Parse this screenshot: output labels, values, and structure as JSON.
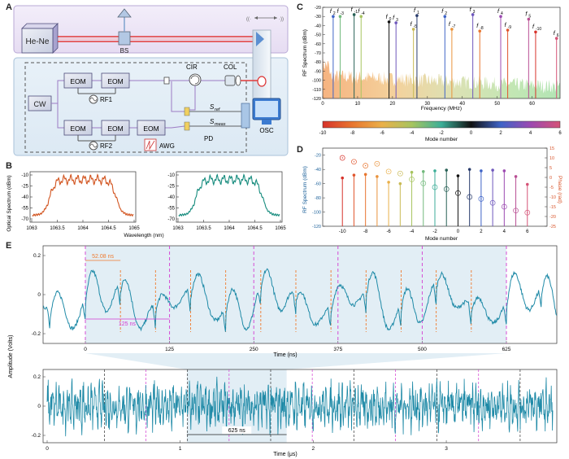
{
  "panel_labels": [
    "A",
    "B",
    "C",
    "D",
    "E"
  ],
  "panel_a": {
    "laser": "He-Ne",
    "beam_splitter": "BS",
    "cw": "CW",
    "eom": "EOM",
    "rf1": "RF1",
    "rf2": "RF2",
    "awg": "AWG",
    "cir": "CIR",
    "col": "COL",
    "pd": "PD",
    "osc": "OSC",
    "s_ref": "S",
    "s_ref_sub": "ref",
    "s_meas": "S",
    "s_meas_sub": "meas"
  },
  "panel_b": {
    "ylabel": "Optical Spectrum (dBm)",
    "xlabel": "Wavelength (nm)",
    "yticks": [
      "-10",
      "-25",
      "-40",
      "-55",
      "-70"
    ],
    "xticks": [
      "1063",
      "1063.5",
      "1064",
      "1064.5",
      "1065"
    ],
    "colors": [
      "#d2541f",
      "#178c7e"
    ]
  },
  "panel_c": {
    "ylabel": "RF Spectrum (dBm)",
    "xlabel": "Frequency (MHz)",
    "colorbar_label": "Mode number",
    "yticks": [
      "-20",
      "-30",
      "-40",
      "-50",
      "-60",
      "-70",
      "-80",
      "-90",
      "-100",
      "-110",
      "-120"
    ],
    "xticks": [
      "0",
      "10",
      "20",
      "30",
      "40",
      "50",
      "60"
    ],
    "colorbar_ticks": [
      "-10",
      "-8",
      "-6",
      "-4",
      "-2",
      "0",
      "2",
      "4",
      "6"
    ],
    "peak_labels": [
      {
        "base": "f",
        "sub": "2"
      },
      {
        "base": "f",
        "sub": "-3"
      },
      {
        "base": "f",
        "sub": "-1"
      },
      {
        "base": "f",
        "sub": "-4"
      },
      {
        "base": "f",
        "sub": "0"
      },
      {
        "base": "f",
        "sub": "3"
      },
      {
        "base": "f",
        "sub": "-5"
      },
      {
        "base": "f",
        "sub": "1"
      },
      {
        "base": "f",
        "sub": "2"
      },
      {
        "base": "f",
        "sub": "-7"
      },
      {
        "base": "f",
        "sub": "3"
      },
      {
        "base": "f",
        "sub": "-8"
      },
      {
        "base": "f",
        "sub": "4"
      },
      {
        "base": "f",
        "sub": "-9"
      },
      {
        "base": "f",
        "sub": "5"
      },
      {
        "base": "f",
        "sub": "-10"
      },
      {
        "base": "f",
        "sub": "6"
      }
    ]
  },
  "panel_d": {
    "ylabel_left": "RF Spectrum (dBm)",
    "ylabel_right": "Phase (rad)",
    "xlabel": "Mode number",
    "yticks_left": [
      "-20",
      "-40",
      "-60",
      "-80",
      "-100",
      "-120"
    ],
    "yticks_right": [
      "15",
      "10",
      "5",
      "0",
      "-5",
      "-10",
      "-15",
      "-20",
      "-25"
    ],
    "xticks": [
      "-10",
      "-8",
      "-6",
      "-4",
      "-2",
      "0",
      "2",
      "4",
      "6"
    ]
  },
  "panel_e": {
    "ylabel": "Amplitude (Volts)",
    "top_xlabel": "Time (ns)",
    "bottom_xlabel": "Time (μs)",
    "top_xticks": [
      "0",
      "125",
      "250",
      "375",
      "500",
      "625"
    ],
    "bottom_xticks": [
      "0",
      "1",
      "2",
      "3"
    ],
    "yticks": [
      "0.2",
      "0",
      "-0.2"
    ],
    "annotation_short": "52.08 ns",
    "annotation_period": "125 ns",
    "annotation_long": "625 ns"
  },
  "chart_data": [
    {
      "type": "line",
      "panel": "C",
      "xlabel": "Frequency (MHz)",
      "ylabel": "RF Spectrum (dBm)",
      "xlim": [
        0,
        68
      ],
      "ylim": [
        -120,
        -20
      ],
      "series": [
        {
          "x": [
            3,
            5,
            9,
            11,
            19,
            21,
            26,
            27,
            35,
            37,
            43,
            45,
            51,
            53,
            59,
            61,
            67
          ],
          "values": [
            -30,
            -30,
            -28,
            -30,
            -36,
            -37,
            -44,
            -29,
            -30,
            -44,
            -28,
            -46,
            -30,
            -45,
            -33,
            -47,
            -54
          ]
        }
      ]
    },
    {
      "type": "scatter",
      "panel": "D",
      "xlabel": "Mode number",
      "ylabel": "RF Spectrum (dBm)",
      "ylim": [
        -120,
        -20
      ],
      "x": [
        -10,
        -9,
        -8,
        -7,
        -6,
        -5,
        -4,
        -3,
        -2,
        -1,
        0,
        1,
        2,
        3,
        4,
        5,
        6
      ],
      "series": [
        {
          "values": [
            -52,
            -48,
            -47,
            -50,
            -58,
            -60,
            -44,
            -43,
            -42,
            -41,
            -49,
            -40,
            -42,
            -41,
            -42,
            -50,
            -61
          ]
        },
        {
          "values": [
            10,
            8,
            6,
            7,
            3,
            2,
            -1,
            -3,
            -5,
            -6,
            -8,
            -10,
            -11,
            -13,
            -15,
            -17,
            -18
          ]
        }
      ]
    }
  ]
}
